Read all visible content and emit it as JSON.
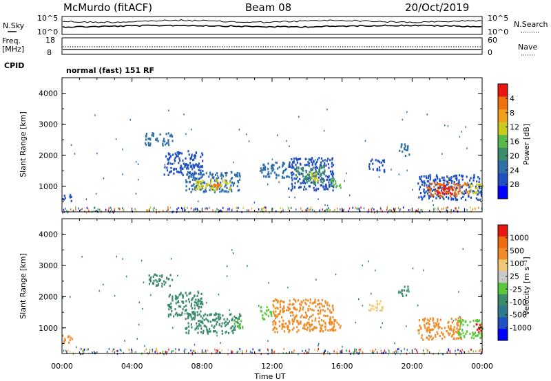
{
  "header": {
    "station": "McMurdo (fitACF)",
    "beam": "Beam 08",
    "date": "20/Oct/2019"
  },
  "status_panels": {
    "nsky_label": "N.Sky",
    "nsky_top": "10^5",
    "nsky_bottom": "10^0",
    "nsearch_label": "N.Search",
    "nsearch_top": "10^5",
    "nsearch_bottom": "10^0",
    "freq_label": "Freq.",
    "freq_unit": "[MHz]",
    "freq_top": "18",
    "freq_bottom": "8",
    "nave_label": "Nave",
    "nave_top": "60",
    "nave_bottom": "0",
    "cpid_label": "CPID",
    "cpid_text": "normal (fast) 151 RF"
  },
  "chart_data": [
    {
      "type": "heatmap",
      "title": "",
      "xlabel": "Time UT",
      "ylabel": "Slant Range [km]",
      "xlim": [
        0,
        24
      ],
      "ylim": [
        180,
        4500
      ],
      "xticks": [
        "00:00",
        "04:00",
        "08:00",
        "12:00",
        "16:00",
        "20:00",
        "00:00"
      ],
      "yticks": [
        "1000",
        "2000",
        "3000",
        "4000"
      ],
      "colorbar": {
        "label": "Power [dB]",
        "ticks": [
          "4",
          "8",
          "12",
          "16",
          "20",
          "24",
          "28"
        ],
        "colors": [
          "#0000ff",
          "#1f4fc0",
          "#2e6fa8",
          "#3c8c6c",
          "#5ab84a",
          "#c8c81e",
          "#f0a01e",
          "#f07010",
          "#e81810"
        ]
      },
      "regions": [
        {
          "t0": 4.7,
          "t1": 6.3,
          "r0": 2350,
          "r1": 2750,
          "color": "#2e6fa8"
        },
        {
          "t0": 5.8,
          "t1": 8.0,
          "r0": 1400,
          "r1": 2200,
          "color": "#1f4fc0"
        },
        {
          "t0": 7.0,
          "t1": 10.2,
          "r0": 850,
          "r1": 1500,
          "color": "#2e6fa8"
        },
        {
          "t0": 7.6,
          "t1": 9.6,
          "r0": 900,
          "r1": 1250,
          "color": "#c8c81e"
        },
        {
          "t0": 8.4,
          "t1": 9.0,
          "r0": 950,
          "r1": 1150,
          "color": "#f07010"
        },
        {
          "t0": 11.3,
          "t1": 13.0,
          "r0": 1300,
          "r1": 1800,
          "color": "#2e6fa8"
        },
        {
          "t0": 12.9,
          "t1": 15.5,
          "r0": 900,
          "r1": 1950,
          "color": "#1f4fc0"
        },
        {
          "t0": 13.3,
          "t1": 15.0,
          "r0": 1100,
          "r1": 1700,
          "color": "#3c8c6c"
        },
        {
          "t0": 14.0,
          "t1": 14.6,
          "r0": 1200,
          "r1": 1500,
          "color": "#c8c81e"
        },
        {
          "t0": 15.3,
          "t1": 15.9,
          "r0": 950,
          "r1": 1300,
          "color": "#5ab84a"
        },
        {
          "t0": 17.5,
          "t1": 18.4,
          "r0": 1500,
          "r1": 1900,
          "color": "#1f4fc0"
        },
        {
          "t0": 19.2,
          "t1": 19.8,
          "r0": 2000,
          "r1": 2400,
          "color": "#2e6fa8"
        },
        {
          "t0": 20.3,
          "t1": 24.0,
          "r0": 600,
          "r1": 1400,
          "color": "#1f4fc0"
        },
        {
          "t0": 20.8,
          "t1": 23.2,
          "r0": 700,
          "r1": 1150,
          "color": "#f07010"
        },
        {
          "t0": 21.3,
          "t1": 22.3,
          "r0": 750,
          "r1": 1050,
          "color": "#e81810"
        },
        {
          "t0": 23.2,
          "t1": 24.0,
          "r0": 800,
          "r1": 1100,
          "color": "#c8c81e"
        },
        {
          "t0": 0.0,
          "t1": 0.5,
          "r0": 550,
          "r1": 800,
          "color": "#1f4fc0"
        }
      ]
    },
    {
      "type": "heatmap",
      "title": "",
      "xlabel": "Time UT",
      "ylabel": "Slant Range [km]",
      "xlim": [
        0,
        24
      ],
      "ylim": [
        180,
        4500
      ],
      "xticks": [
        "00:00",
        "04:00",
        "08:00",
        "12:00",
        "16:00",
        "20:00",
        "00:00"
      ],
      "yticks": [
        "1000",
        "2000",
        "3000",
        "4000"
      ],
      "colorbar": {
        "label": "Velocity [m s⁻¹]",
        "ticks": [
          "1000",
          "500",
          "100",
          "25",
          "-25",
          "-100",
          "-500",
          "-1000"
        ],
        "colors": [
          "#0000ff",
          "#1f4fc0",
          "#2e7a8c",
          "#3c8c6c",
          "#5ac83c",
          "#c8c8c8",
          "#f0c878",
          "#f08c28",
          "#f06a10",
          "#e81810"
        ]
      },
      "regions": [
        {
          "t0": 4.9,
          "t1": 6.3,
          "r0": 2350,
          "r1": 2750,
          "color": "#3c8c6c"
        },
        {
          "t0": 6.0,
          "t1": 8.0,
          "r0": 1400,
          "r1": 2200,
          "color": "#3c8c6c"
        },
        {
          "t0": 7.0,
          "t1": 10.2,
          "r0": 850,
          "r1": 1500,
          "color": "#3c8c6c"
        },
        {
          "t0": 9.8,
          "t1": 10.3,
          "r0": 1000,
          "r1": 1300,
          "color": "#5ac83c"
        },
        {
          "t0": 11.3,
          "t1": 12.0,
          "r0": 1300,
          "r1": 1700,
          "color": "#5ac83c"
        },
        {
          "t0": 12.0,
          "t1": 15.5,
          "r0": 900,
          "r1": 1950,
          "color": "#f08c28"
        },
        {
          "t0": 15.3,
          "t1": 15.9,
          "r0": 950,
          "r1": 1300,
          "color": "#f08c28"
        },
        {
          "t0": 17.5,
          "t1": 18.3,
          "r0": 1500,
          "r1": 1900,
          "color": "#f0c878"
        },
        {
          "t0": 19.2,
          "t1": 19.8,
          "r0": 2050,
          "r1": 2400,
          "color": "#3c8c6c"
        },
        {
          "t0": 20.3,
          "t1": 22.8,
          "r0": 650,
          "r1": 1350,
          "color": "#f08c28"
        },
        {
          "t0": 22.6,
          "t1": 24.0,
          "r0": 700,
          "r1": 1300,
          "color": "#5ac83c"
        },
        {
          "t0": 23.6,
          "t1": 24.0,
          "r0": 900,
          "r1": 1200,
          "color": "#e81810"
        },
        {
          "t0": 0.0,
          "t1": 0.6,
          "r0": 550,
          "r1": 800,
          "color": "#f08c28"
        }
      ]
    }
  ]
}
